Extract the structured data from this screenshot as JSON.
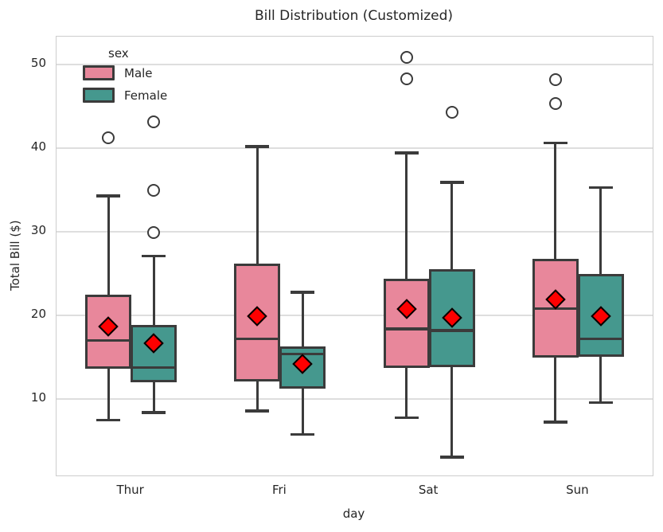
{
  "title": "Bill Distribution (Customized)",
  "chart_data": {
    "type": "boxplot",
    "title": "Bill Distribution (Customized)",
    "xlabel": "day",
    "ylabel": "Total Bill ($)",
    "categories": [
      "Thur",
      "Fri",
      "Sat",
      "Sun"
    ],
    "yticks": [
      10,
      20,
      30,
      40,
      50
    ],
    "ytick_labels": [
      "10",
      "20",
      "30",
      "40",
      "50"
    ],
    "ylim": [
      0.9,
      53.3
    ],
    "grid": "horizontal",
    "legend": {
      "title": "sex",
      "position": "upper-left",
      "entries": [
        {
          "label": "Male",
          "color": "#e8879b"
        },
        {
          "label": "Female",
          "color": "#45988e"
        }
      ]
    },
    "colors": {
      "male_fill": "#e8879b",
      "female_fill": "#45988e",
      "box_edge": "#3b3b3b",
      "mean_fill": "#fe0000",
      "mean_edge": "#000000",
      "outlier_edge": "#3b3b3b",
      "outlier_fill": "#ffffff",
      "grid": "#dedede",
      "spine": "#cdcdcd",
      "text": "#262626"
    },
    "series": [
      {
        "name": "Male",
        "color": "#e8879b",
        "boxes": [
          {
            "category": "Thur",
            "whisker_low": 7.5,
            "q1": 13.8,
            "median": 17.0,
            "q3": 22.3,
            "whisker_high": 34.3,
            "mean": 18.7,
            "outliers": [
              41.2
            ]
          },
          {
            "category": "Fri",
            "whisker_low": 8.6,
            "q1": 12.3,
            "median": 17.2,
            "q3": 26.1,
            "whisker_high": 40.2,
            "mean": 19.9,
            "outliers": []
          },
          {
            "category": "Sat",
            "whisker_low": 7.8,
            "q1": 13.9,
            "median": 18.4,
            "q3": 24.2,
            "whisker_high": 39.4,
            "mean": 20.8,
            "outliers": [
              50.8,
              48.3
            ]
          },
          {
            "category": "Sun",
            "whisker_low": 7.3,
            "q1": 15.1,
            "median": 20.8,
            "q3": 26.6,
            "whisker_high": 40.6,
            "mean": 21.9,
            "outliers": [
              48.2,
              45.3
            ]
          }
        ]
      },
      {
        "name": "Female",
        "color": "#45988e",
        "boxes": [
          {
            "category": "Thur",
            "whisker_low": 8.4,
            "q1": 12.2,
            "median": 13.8,
            "q3": 18.7,
            "whisker_high": 27.1,
            "mean": 16.7,
            "outliers": [
              43.1,
              34.9,
              29.9
            ]
          },
          {
            "category": "Fri",
            "whisker_low": 5.8,
            "q1": 11.4,
            "median": 15.4,
            "q3": 16.2,
            "whisker_high": 22.8,
            "mean": 14.2,
            "outliers": []
          },
          {
            "category": "Sat",
            "whisker_low": 3.1,
            "q1": 14.0,
            "median": 18.2,
            "q3": 25.4,
            "whisker_high": 35.9,
            "mean": 19.7,
            "outliers": [
              44.3
            ]
          },
          {
            "category": "Sun",
            "whisker_low": 9.6,
            "q1": 15.2,
            "median": 17.2,
            "q3": 24.8,
            "whisker_high": 35.3,
            "mean": 19.9,
            "outliers": []
          }
        ]
      }
    ],
    "mean_marker": {
      "shape": "diamond",
      "fill": "#fe0000",
      "edge": "#000000"
    }
  }
}
